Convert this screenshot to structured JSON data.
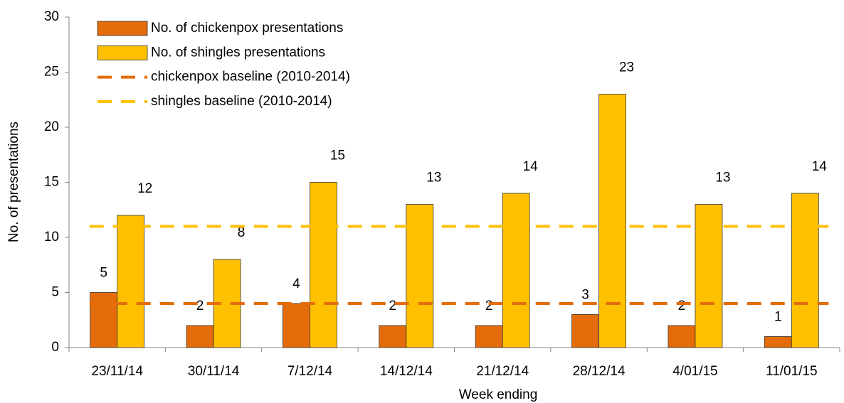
{
  "chart_data": {
    "type": "bar",
    "x_label": "Week ending",
    "y_label": "No. of presentations",
    "categories": [
      "23/11/14",
      "30/11/14",
      "7/12/14",
      "14/12/14",
      "21/12/14",
      "28/12/14",
      "4/01/15",
      "11/01/15"
    ],
    "series": [
      {
        "name": "No. of chickenpox presentations",
        "type": "bar",
        "color": "#e46c0a",
        "values": [
          5,
          2,
          4,
          2,
          2,
          3,
          2,
          1
        ]
      },
      {
        "name": "No. of shingles presentations",
        "type": "bar",
        "color": "#ffc000",
        "values": [
          12,
          8,
          15,
          13,
          14,
          23,
          13,
          14
        ]
      },
      {
        "name": "chickenpox baseline (2010-2014)",
        "type": "line",
        "color": "#e46c0a",
        "values": [
          4,
          4,
          4,
          4,
          4,
          4,
          4,
          4
        ]
      },
      {
        "name": "shingles baseline (2010-2014)",
        "type": "line",
        "color": "#ffc000",
        "values": [
          11,
          11,
          11,
          11,
          11,
          11,
          11,
          11
        ]
      }
    ],
    "ylim": [
      0,
      30
    ],
    "yticks": [
      0,
      5,
      10,
      15,
      20,
      25,
      30
    ],
    "legend": "upper left",
    "grid": false
  }
}
